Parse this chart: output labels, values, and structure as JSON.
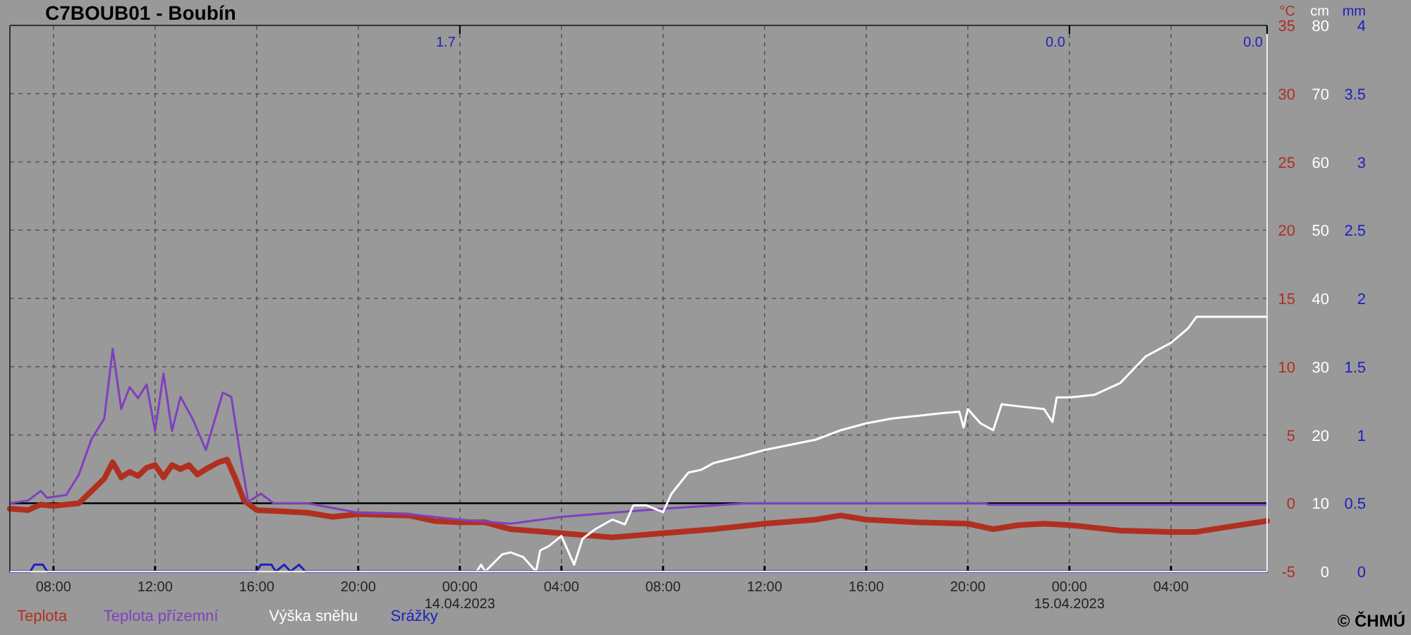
{
  "chart_data": {
    "type": "line",
    "title": "C7BOUB01 - Boubín",
    "ylabel": "°C",
    "y2label": "cm",
    "y3label": "mm",
    "xlim": [
      "2023-04-13T06:17",
      "2023-04-15T07:47"
    ],
    "xticks": [
      {
        "value": "2023-04-13T08:00",
        "label": "08:00"
      },
      {
        "value": "2023-04-13T12:00",
        "label": "12:00"
      },
      {
        "value": "2023-04-13T16:00",
        "label": "16:00"
      },
      {
        "value": "2023-04-13T20:00",
        "label": "20:00"
      },
      {
        "value": "2023-04-14T00:00",
        "label": "00:00\n14.04.2023"
      },
      {
        "value": "2023-04-14T04:00",
        "label": "04:00"
      },
      {
        "value": "2023-04-14T08:00",
        "label": "08:00"
      },
      {
        "value": "2023-04-14T12:00",
        "label": "12:00"
      },
      {
        "value": "2023-04-14T16:00",
        "label": "16:00"
      },
      {
        "value": "2023-04-14T20:00",
        "label": "20:00"
      },
      {
        "value": "2023-04-15T00:00",
        "label": "00:00\n15.04.2023"
      },
      {
        "value": "2023-04-15T04:00",
        "label": "04:00"
      }
    ],
    "ylim": [
      -5,
      35
    ],
    "yticks": [
      -5,
      0,
      5,
      10,
      15,
      20,
      25,
      30,
      35
    ],
    "y2lim": [
      0,
      80
    ],
    "y2ticks": [
      0,
      10,
      20,
      30,
      40,
      50,
      60,
      70,
      80
    ],
    "y3lim": [
      0,
      4
    ],
    "y3ticks": [
      0,
      0.5,
      1,
      1.5,
      2,
      2.5,
      3,
      3.5,
      4
    ],
    "grid": true,
    "legend": "bottom",
    "line_style": "solid",
    "marker": "none",
    "ref_lines": [
      {
        "axis": "y",
        "value": 0,
        "color": "#000000"
      }
    ],
    "annotations": [
      "1.7",
      "0.0",
      "0.0",
      "© ČHMÚ"
    ],
    "series": [
      {
        "name": "Teplota",
        "color": "#b03020",
        "axis": "y",
        "x": [
          "2023-04-13T06:17",
          "2023-04-13T07:00",
          "2023-04-13T07:30",
          "2023-04-13T08:00",
          "2023-04-13T09:00",
          "2023-04-13T09:30",
          "2023-04-13T10:00",
          "2023-04-13T10:20",
          "2023-04-13T10:40",
          "2023-04-13T11:00",
          "2023-04-13T11:20",
          "2023-04-13T11:40",
          "2023-04-13T12:00",
          "2023-04-13T12:20",
          "2023-04-13T12:40",
          "2023-04-13T13:00",
          "2023-04-13T13:20",
          "2023-04-13T13:40",
          "2023-04-13T14:00",
          "2023-04-13T14:30",
          "2023-04-13T14:50",
          "2023-04-13T15:10",
          "2023-04-13T15:30",
          "2023-04-13T16:00",
          "2023-04-13T17:00",
          "2023-04-13T18:00",
          "2023-04-13T19:00",
          "2023-04-13T20:00",
          "2023-04-13T22:00",
          "2023-04-13T23:00",
          "2023-04-14T00:00",
          "2023-04-14T01:00",
          "2023-04-14T02:00",
          "2023-04-14T04:00",
          "2023-04-14T06:00",
          "2023-04-14T08:00",
          "2023-04-14T10:00",
          "2023-04-14T12:00",
          "2023-04-14T14:00",
          "2023-04-14T15:00",
          "2023-04-14T16:00",
          "2023-04-14T18:00",
          "2023-04-14T20:00",
          "2023-04-14T21:00",
          "2023-04-14T22:00",
          "2023-04-14T23:00",
          "2023-04-15T00:00",
          "2023-04-15T02:00",
          "2023-04-15T04:00",
          "2023-04-15T05:00",
          "2023-04-15T06:00",
          "2023-04-15T07:47"
        ],
        "values": [
          -0.4,
          -0.5,
          -0.1,
          -0.2,
          0.0,
          0.9,
          1.8,
          3.0,
          1.9,
          2.3,
          2.0,
          2.6,
          2.8,
          1.9,
          2.8,
          2.5,
          2.8,
          2.1,
          2.5,
          3.0,
          3.2,
          1.8,
          0.2,
          -0.5,
          -0.6,
          -0.7,
          -1.0,
          -0.8,
          -0.9,
          -1.3,
          -1.4,
          -1.4,
          -1.9,
          -2.2,
          -2.5,
          -2.2,
          -1.9,
          -1.5,
          -1.2,
          -0.9,
          -1.2,
          -1.4,
          -1.5,
          -1.9,
          -1.6,
          -1.5,
          -1.6,
          -2.0,
          -2.1,
          -2.1,
          -1.8,
          -1.3
        ]
      },
      {
        "name": "Teplota přízemní",
        "color": "#8040c0",
        "axis": "y",
        "x": [
          "2023-04-13T06:17",
          "2023-04-13T07:00",
          "2023-04-13T07:30",
          "2023-04-13T07:45",
          "2023-04-13T08:30",
          "2023-04-13T09:00",
          "2023-04-13T09:30",
          "2023-04-13T10:00",
          "2023-04-13T10:20",
          "2023-04-13T10:40",
          "2023-04-13T11:00",
          "2023-04-13T11:20",
          "2023-04-13T11:40",
          "2023-04-13T12:00",
          "2023-04-13T12:20",
          "2023-04-13T12:40",
          "2023-04-13T13:00",
          "2023-04-13T13:30",
          "2023-04-13T14:00",
          "2023-04-13T14:40",
          "2023-04-13T15:00",
          "2023-04-13T15:20",
          "2023-04-13T15:40",
          "2023-04-13T16:10",
          "2023-04-13T16:40",
          "2023-04-13T18:00",
          "2023-04-13T20:00",
          "2023-04-13T22:00",
          "2023-04-14T00:00",
          "2023-04-14T02:00",
          "2023-04-14T04:00",
          "2023-04-14T08:00",
          "2023-04-14T11:20",
          "2023-04-14T20:40",
          "2023-04-14T20:50",
          "2023-04-15T07:47"
        ],
        "values": [
          0.0,
          0.2,
          0.9,
          0.4,
          0.6,
          2.1,
          4.7,
          6.2,
          11.3,
          6.9,
          8.5,
          7.7,
          8.7,
          5.3,
          9.5,
          5.3,
          7.8,
          6.1,
          3.9,
          8.1,
          7.8,
          3.8,
          0.1,
          0.7,
          0.0,
          0.0,
          -0.7,
          -0.8,
          -1.2,
          -1.5,
          -1.0,
          -0.4,
          0.0,
          0.0,
          -0.1,
          -0.1
        ]
      },
      {
        "name": "Výška sněhu",
        "color": "#ffffff",
        "axis": "y2",
        "x": [
          "2023-04-14T00:40",
          "2023-04-14T00:50",
          "2023-04-14T01:00",
          "2023-04-14T01:40",
          "2023-04-14T02:00",
          "2023-04-14T02:30",
          "2023-04-14T03:00",
          "2023-04-14T03:10",
          "2023-04-14T03:30",
          "2023-04-14T04:00",
          "2023-04-14T04:30",
          "2023-04-14T04:50",
          "2023-04-14T05:20",
          "2023-04-14T06:00",
          "2023-04-14T06:30",
          "2023-04-14T06:50",
          "2023-04-14T07:20",
          "2023-04-14T08:00",
          "2023-04-14T08:20",
          "2023-04-14T09:00",
          "2023-04-14T09:30",
          "2023-04-14T10:00",
          "2023-04-14T11:00",
          "2023-04-14T12:00",
          "2023-04-14T14:00",
          "2023-04-14T15:00",
          "2023-04-14T16:00",
          "2023-04-14T17:00",
          "2023-04-14T18:00",
          "2023-04-14T19:00",
          "2023-04-14T19:40",
          "2023-04-14T19:50",
          "2023-04-14T20:00",
          "2023-04-14T20:30",
          "2023-04-14T21:00",
          "2023-04-14T21:20",
          "2023-04-14T22:00",
          "2023-04-14T23:00",
          "2023-04-14T23:20",
          "2023-04-14T23:30",
          "2023-04-15T00:00",
          "2023-04-15T01:00",
          "2023-04-15T02:00",
          "2023-04-15T03:00",
          "2023-04-15T04:00",
          "2023-04-15T04:40",
          "2023-04-15T05:00",
          "2023-04-15T07:47"
        ],
        "values": [
          0,
          1.0,
          0,
          2.5,
          2.8,
          2.1,
          0,
          3.1,
          3.7,
          5.2,
          1.0,
          4.8,
          6.2,
          7.6,
          6.9,
          9.7,
          9.7,
          8.7,
          11.4,
          14.5,
          14.9,
          15.9,
          16.8,
          17.8,
          19.3,
          20.7,
          21.7,
          22.4,
          22.8,
          23.2,
          23.4,
          21.1,
          23.8,
          21.7,
          20.7,
          24.5,
          24.2,
          23.8,
          21.9,
          25.5,
          25.5,
          25.9,
          27.6,
          31.5,
          33.5,
          35.6,
          37.3,
          37.3
        ]
      },
      {
        "name": "Srážky",
        "color": "#2020c0",
        "axis": "y3",
        "x": [
          "2023-04-13T06:17",
          "2023-04-13T07:05",
          "2023-04-13T07:15",
          "2023-04-13T07:35",
          "2023-04-13T07:45",
          "2023-04-13T16:00",
          "2023-04-13T16:10",
          "2023-04-13T16:35",
          "2023-04-13T16:45",
          "2023-04-13T17:05",
          "2023-04-13T17:20",
          "2023-04-13T17:40",
          "2023-04-13T17:55",
          "2023-04-15T07:47"
        ],
        "values": [
          0,
          0,
          0.05,
          0.05,
          0,
          0,
          0.05,
          0.05,
          0,
          0.05,
          0,
          0.05,
          0,
          0
        ]
      }
    ]
  }
}
